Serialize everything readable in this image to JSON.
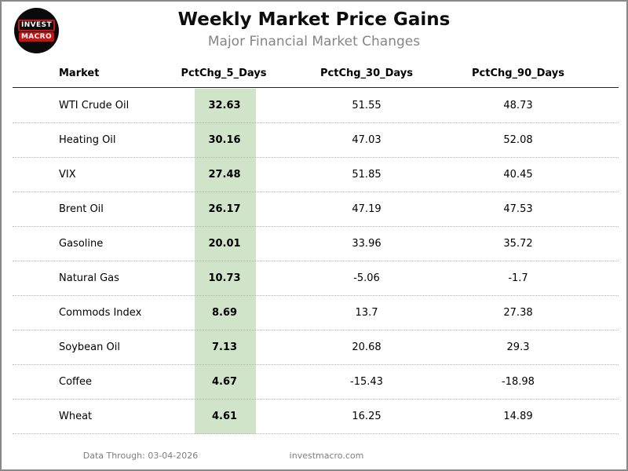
{
  "logo": {
    "line1": "INVEST",
    "line2": "MACRO"
  },
  "header": {
    "title": "Weekly Market Price Gains",
    "subtitle": "Major Financial Market Changes"
  },
  "table": {
    "columns": [
      "Market",
      "PctChg_5_Days",
      "PctChg_30_Days",
      "PctChg_90_Days"
    ],
    "highlight_color": "#d0e4ca",
    "rows": [
      {
        "market": "WTI Crude Oil",
        "pct_5": "32.63",
        "pct_30": "51.55",
        "pct_90": "48.73"
      },
      {
        "market": "Heating Oil",
        "pct_5": "30.16",
        "pct_30": "47.03",
        "pct_90": "52.08"
      },
      {
        "market": "VIX",
        "pct_5": "27.48",
        "pct_30": "51.85",
        "pct_90": "40.45"
      },
      {
        "market": "Brent Oil",
        "pct_5": "26.17",
        "pct_30": "47.19",
        "pct_90": "47.53"
      },
      {
        "market": "Gasoline",
        "pct_5": "20.01",
        "pct_30": "33.96",
        "pct_90": "35.72"
      },
      {
        "market": "Natural Gas",
        "pct_5": "10.73",
        "pct_30": "-5.06",
        "pct_90": "-1.7"
      },
      {
        "market": "Commods Index",
        "pct_5": "8.69",
        "pct_30": "13.7",
        "pct_90": "27.38"
      },
      {
        "market": "Soybean Oil",
        "pct_5": "7.13",
        "pct_30": "20.68",
        "pct_90": "29.3"
      },
      {
        "market": "Coffee",
        "pct_5": "4.67",
        "pct_30": "-15.43",
        "pct_90": "-18.98"
      },
      {
        "market": "Wheat",
        "pct_5": "4.61",
        "pct_30": "16.25",
        "pct_90": "14.89"
      }
    ]
  },
  "footer": {
    "data_through": "Data Through: 03-04-2026",
    "website": "investmacro.com"
  },
  "chart_data": {
    "type": "table",
    "title": "Weekly Market Price Gains",
    "subtitle": "Major Financial Market Changes",
    "columns": [
      "Market",
      "PctChg_5_Days",
      "PctChg_30_Days",
      "PctChg_90_Days"
    ],
    "highlighted_column": "PctChg_5_Days",
    "rows": [
      [
        "WTI Crude Oil",
        32.63,
        51.55,
        48.73
      ],
      [
        "Heating Oil",
        30.16,
        47.03,
        52.08
      ],
      [
        "VIX",
        27.48,
        51.85,
        40.45
      ],
      [
        "Brent Oil",
        26.17,
        47.19,
        47.53
      ],
      [
        "Gasoline",
        20.01,
        33.96,
        35.72
      ],
      [
        "Natural Gas",
        10.73,
        -5.06,
        -1.7
      ],
      [
        "Commods Index",
        8.69,
        13.7,
        27.38
      ],
      [
        "Soybean Oil",
        7.13,
        20.68,
        29.3
      ],
      [
        "Coffee",
        4.67,
        -15.43,
        -18.98
      ],
      [
        "Wheat",
        4.61,
        16.25,
        14.89
      ]
    ]
  }
}
